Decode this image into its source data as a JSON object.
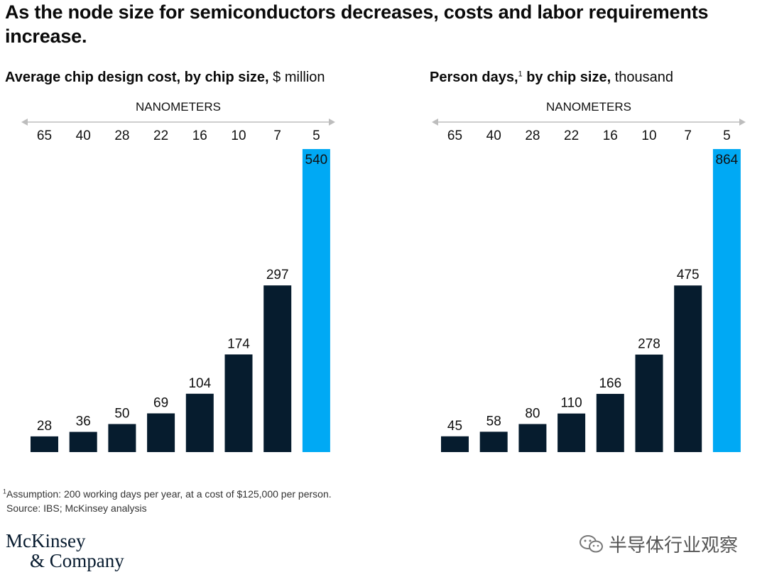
{
  "headline": "As the node size for semiconductors decreases, costs and labor requirements increase.",
  "colors": {
    "dark_bar": "#061c2e",
    "highlight_bar": "#00a9f4",
    "axis_arrow": "#bdbdbd"
  },
  "chart_data": [
    {
      "type": "bar",
      "title": "Average chip design cost, by chip size,",
      "unit": "$ million",
      "footnote_mark": "",
      "xlabel": "NANOMETERS",
      "categories": [
        "65",
        "40",
        "28",
        "22",
        "16",
        "10",
        "7",
        "5"
      ],
      "values": [
        28,
        36,
        50,
        69,
        104,
        174,
        297,
        540
      ],
      "highlight_index": 7
    },
    {
      "type": "bar",
      "title": "Person days,",
      "unit": "thousand",
      "footnote_mark": "1",
      "title_suffix": "by chip size,",
      "xlabel": "NANOMETERS",
      "categories": [
        "65",
        "40",
        "28",
        "22",
        "16",
        "10",
        "7",
        "5"
      ],
      "values": [
        45,
        58,
        80,
        110,
        166,
        278,
        475,
        864
      ],
      "highlight_index": 7
    }
  ],
  "footnote": {
    "mark": "1",
    "assumption": "Assumption: 200 working days per year, at a cost of $125,000 per person.",
    "source": "Source: IBS; McKinsey analysis"
  },
  "logo": {
    "line1": "McKinsey",
    "line2": "& Company"
  },
  "watermark": {
    "text": "半导体行业观察",
    "icon": "wechat-icon"
  }
}
